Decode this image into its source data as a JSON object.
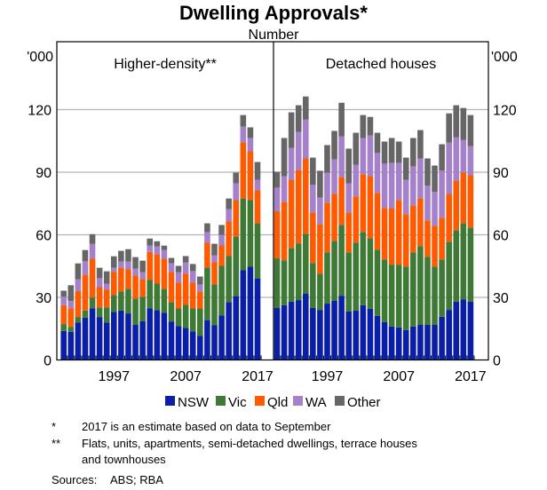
{
  "chart_data": {
    "type": "bar",
    "stacked": true,
    "title": "Dwelling Approvals*",
    "subtitle": "Number",
    "y_unit_label": "'000",
    "ylim": [
      0,
      120
    ],
    "yticks": [
      "0",
      "30",
      "60",
      "90",
      "120"
    ],
    "xtick_labels": [
      "1997",
      "2007",
      "2017"
    ],
    "years": [
      1990,
      1991,
      1992,
      1993,
      1994,
      1995,
      1996,
      1997,
      1998,
      1999,
      2000,
      2001,
      2002,
      2003,
      2004,
      2005,
      2006,
      2007,
      2008,
      2009,
      2010,
      2011,
      2012,
      2013,
      2014,
      2015,
      2016,
      2017
    ],
    "grid": true,
    "legend_position": "bottom",
    "legend": [
      {
        "name": "NSW",
        "color": "#0a1ea8"
      },
      {
        "name": "Vic",
        "color": "#3e7a35"
      },
      {
        "name": "Qld",
        "color": "#ff5a00"
      },
      {
        "name": "WA",
        "color": "#a681cb"
      },
      {
        "name": "Other",
        "color": "#666666"
      }
    ],
    "panels": [
      {
        "title": "Higher-density**",
        "series": [
          {
            "name": "NSW",
            "values": [
              13.9,
              13.5,
              18,
              20.3,
              24.8,
              20.6,
              18,
              23.1,
              23.7,
              22.3,
              16.8,
              18.5,
              24.8,
              23.9,
              22.7,
              18.3,
              16.2,
              15.3,
              13.6,
              11.5,
              19.1,
              16.6,
              21.3,
              27.7,
              30.6,
              43,
              44.7,
              39.1
            ]
          },
          {
            "name": "Vic",
            "values": [
              3.3,
              2.4,
              2.6,
              3.4,
              5.1,
              4.6,
              7.2,
              8,
              9.1,
              11.8,
              12.6,
              11.8,
              13.5,
              12.7,
              11.4,
              9.4,
              8.5,
              11.1,
              11.1,
              13.2,
              25.2,
              19.6,
              23.8,
              22.1,
              28.5,
              34.4,
              31.9,
              26.4
            ]
          },
          {
            "name": "Qld",
            "values": [
              9,
              8.9,
              12.4,
              17.1,
              18.6,
              9.7,
              8.6,
              11.2,
              11.4,
              9.3,
              11,
              8.4,
              13.5,
              14,
              14.4,
              14.4,
              12.3,
              14.9,
              12.3,
              8.1,
              11.9,
              10.6,
              9.8,
              16.6,
              17.5,
              26.9,
              23.4,
              15.8
            ]
          },
          {
            "name": "WA",
            "values": [
              4.1,
              3.4,
              5.7,
              6.5,
              7.1,
              4.3,
              2.8,
              1.9,
              3,
              3.8,
              3.4,
              3.4,
              3,
              3.8,
              4.2,
              4.3,
              5.1,
              5.5,
              5.6,
              3.4,
              5.1,
              3.4,
              5.1,
              5.9,
              8.1,
              7.6,
              6.4,
              5.1
            ]
          },
          {
            "name": "Other",
            "values": [
              2.9,
              7.6,
              7.6,
              5.4,
              4.7,
              5,
              5.9,
              5.5,
              5.1,
              5.9,
              5.5,
              5.5,
              3.4,
              2.5,
              2.1,
              2.5,
              3,
              3,
              3.4,
              3.8,
              4.2,
              5.5,
              4.7,
              5.1,
              5.1,
              5.5,
              5.1,
              8.5
            ]
          }
        ]
      },
      {
        "title": "Detached houses",
        "series": [
          {
            "name": "NSW",
            "values": [
              24.9,
              26.2,
              27.9,
              28.7,
              31.7,
              24.9,
              24,
              27,
              28.3,
              30.8,
              23.2,
              23.6,
              26.2,
              24.5,
              21.1,
              18.1,
              16,
              15.6,
              14.3,
              16,
              16.8,
              16.8,
              16.8,
              20.7,
              24,
              27.9,
              29.1,
              27.9
            ]
          },
          {
            "name": "Vic",
            "values": [
              23.8,
              21.6,
              25.8,
              27.2,
              28.8,
              21.6,
              17.4,
              24.6,
              28.8,
              34,
              28.4,
              32.7,
              35.2,
              33.9,
              31.8,
              30.1,
              29.7,
              30.1,
              30.5,
              35.6,
              37.8,
              32.7,
              28,
              27.5,
              32.7,
              34.3,
              36.5,
              35.6
            ]
          },
          {
            "name": "Qld",
            "values": [
              22.6,
              28,
              32.7,
              35.2,
              36.1,
              24.2,
              23.8,
              23.8,
              22.5,
              22.9,
              19.1,
              22.1,
              27.6,
              29.7,
              27.2,
              24.6,
              27.1,
              31,
              25.1,
              22.5,
              22.9,
              17.4,
              19.6,
              20,
              22.9,
              23.8,
              24.2,
              25
            ]
          },
          {
            "name": "WA",
            "values": [
              11.3,
              12.3,
              15.3,
              18.2,
              18.7,
              13.2,
              12.7,
              14.4,
              16.6,
              19.5,
              14,
              15.2,
              17.4,
              19.5,
              19.1,
              21.3,
              21.7,
              17.8,
              16.5,
              18.7,
              19.1,
              16.6,
              16.1,
              22.5,
              24.6,
              20.8,
              15.7,
              14
            ]
          },
          {
            "name": "Other",
            "values": [
              7.6,
              18.3,
              17,
              12.8,
              11,
              13.1,
              12.8,
              13.2,
              13.6,
              16.1,
              16.6,
              15.3,
              11,
              8.9,
              9.7,
              10.6,
              11.9,
              10.2,
              10.6,
              13.6,
              13.6,
              13.1,
              12.7,
              12.7,
              14,
              15.3,
              15.3,
              14.9
            ]
          }
        ]
      }
    ],
    "footnotes": [
      {
        "mark": "*",
        "text": "2017 is an estimate based on data to September"
      },
      {
        "mark": "**",
        "text": "Flats, units, apartments, semi-detached dwellings, terrace houses",
        "text2": "and townhouses"
      }
    ],
    "sources_label": "Sources:",
    "sources": "ABS; RBA"
  }
}
